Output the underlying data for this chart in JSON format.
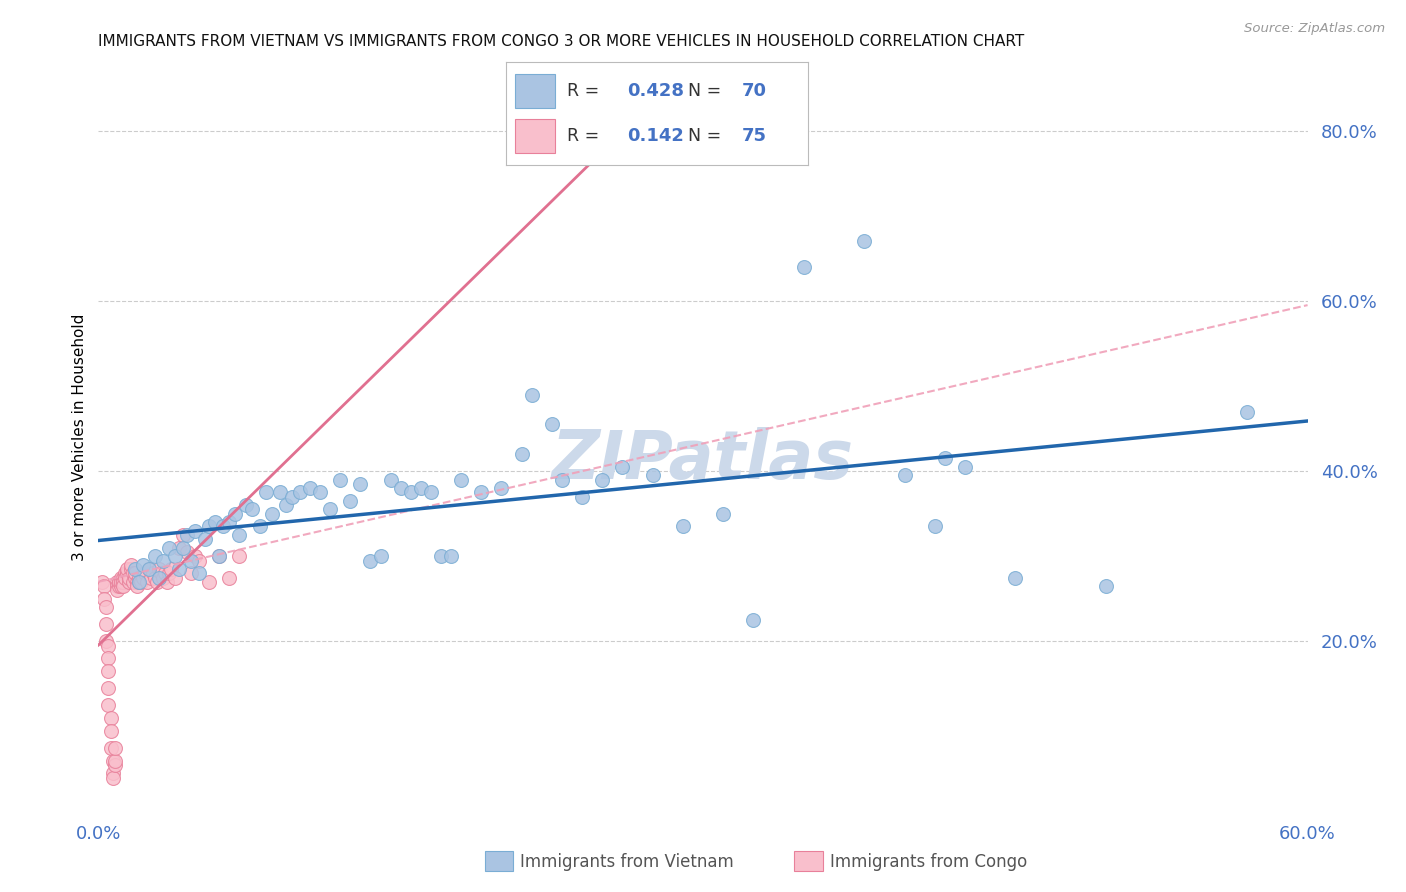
{
  "title": "IMMIGRANTS FROM VIETNAM VS IMMIGRANTS FROM CONGO 3 OR MORE VEHICLES IN HOUSEHOLD CORRELATION CHART",
  "source": "Source: ZipAtlas.com",
  "ylabel": "3 or more Vehicles in Household",
  "xlim": [
    0.0,
    0.6
  ],
  "ylim": [
    0.0,
    0.88
  ],
  "right_yticks": [
    0.2,
    0.4,
    0.6,
    0.8
  ],
  "right_yticklabels": [
    "20.0%",
    "40.0%",
    "60.0%",
    "80.0%"
  ],
  "xtick_vals": [
    0.0,
    0.12,
    0.24,
    0.36,
    0.48,
    0.6
  ],
  "xtick_labels": [
    "0.0%",
    "",
    "",
    "",
    "",
    "60.0%"
  ],
  "vietnam_color": "#aac4e2",
  "vietnam_edge": "#7aadd4",
  "congo_color": "#f9bfcc",
  "congo_edge": "#e8809a",
  "line_vietnam_color": "#2166ac",
  "line_congo_solid_color": "#e07090",
  "line_congo_dashed_color": "#f0a0b8",
  "watermark_color": "#ccd9ea",
  "legend_R_vietnam": "0.428",
  "legend_N_vietnam": "70",
  "legend_R_congo": "0.142",
  "legend_N_congo": "75",
  "legend_val_color": "#4472c4",
  "legend_label_color": "#555555",
  "tick_color": "#4472c4",
  "vietnam_x": [
    0.018,
    0.02,
    0.022,
    0.025,
    0.028,
    0.03,
    0.032,
    0.035,
    0.038,
    0.04,
    0.042,
    0.044,
    0.046,
    0.048,
    0.05,
    0.053,
    0.055,
    0.058,
    0.06,
    0.062,
    0.065,
    0.068,
    0.07,
    0.073,
    0.076,
    0.08,
    0.083,
    0.086,
    0.09,
    0.093,
    0.096,
    0.1,
    0.105,
    0.11,
    0.115,
    0.12,
    0.125,
    0.13,
    0.135,
    0.14,
    0.145,
    0.15,
    0.155,
    0.16,
    0.165,
    0.17,
    0.175,
    0.18,
    0.19,
    0.2,
    0.21,
    0.215,
    0.225,
    0.23,
    0.24,
    0.25,
    0.26,
    0.275,
    0.29,
    0.31,
    0.325,
    0.35,
    0.38,
    0.4,
    0.415,
    0.42,
    0.43,
    0.455,
    0.5,
    0.57
  ],
  "vietnam_y": [
    0.285,
    0.27,
    0.29,
    0.285,
    0.3,
    0.275,
    0.295,
    0.31,
    0.3,
    0.285,
    0.31,
    0.325,
    0.295,
    0.33,
    0.28,
    0.32,
    0.335,
    0.34,
    0.3,
    0.335,
    0.34,
    0.35,
    0.325,
    0.36,
    0.355,
    0.335,
    0.375,
    0.35,
    0.375,
    0.36,
    0.37,
    0.375,
    0.38,
    0.375,
    0.355,
    0.39,
    0.365,
    0.385,
    0.295,
    0.3,
    0.39,
    0.38,
    0.375,
    0.38,
    0.375,
    0.3,
    0.3,
    0.39,
    0.375,
    0.38,
    0.42,
    0.49,
    0.455,
    0.39,
    0.37,
    0.39,
    0.405,
    0.395,
    0.335,
    0.35,
    0.225,
    0.64,
    0.67,
    0.395,
    0.335,
    0.415,
    0.405,
    0.275,
    0.265,
    0.47
  ],
  "congo_x": [
    0.002,
    0.003,
    0.003,
    0.004,
    0.004,
    0.004,
    0.005,
    0.005,
    0.005,
    0.005,
    0.005,
    0.006,
    0.006,
    0.006,
    0.007,
    0.007,
    0.007,
    0.008,
    0.008,
    0.008,
    0.009,
    0.009,
    0.009,
    0.01,
    0.01,
    0.01,
    0.011,
    0.011,
    0.011,
    0.012,
    0.012,
    0.012,
    0.013,
    0.013,
    0.014,
    0.014,
    0.015,
    0.015,
    0.016,
    0.016,
    0.017,
    0.017,
    0.018,
    0.018,
    0.019,
    0.019,
    0.02,
    0.02,
    0.021,
    0.022,
    0.023,
    0.024,
    0.025,
    0.026,
    0.027,
    0.028,
    0.029,
    0.03,
    0.031,
    0.032,
    0.033,
    0.034,
    0.035,
    0.036,
    0.038,
    0.04,
    0.042,
    0.044,
    0.046,
    0.048,
    0.05,
    0.055,
    0.06,
    0.065,
    0.07
  ],
  "congo_y": [
    0.27,
    0.265,
    0.25,
    0.24,
    0.22,
    0.2,
    0.195,
    0.18,
    0.165,
    0.145,
    0.125,
    0.11,
    0.095,
    0.075,
    0.06,
    0.045,
    0.04,
    0.055,
    0.06,
    0.075,
    0.27,
    0.265,
    0.26,
    0.27,
    0.265,
    0.27,
    0.275,
    0.265,
    0.27,
    0.275,
    0.27,
    0.265,
    0.28,
    0.275,
    0.28,
    0.285,
    0.27,
    0.275,
    0.285,
    0.29,
    0.28,
    0.27,
    0.275,
    0.28,
    0.27,
    0.265,
    0.27,
    0.275,
    0.27,
    0.275,
    0.28,
    0.27,
    0.285,
    0.275,
    0.28,
    0.275,
    0.27,
    0.285,
    0.28,
    0.275,
    0.28,
    0.27,
    0.28,
    0.285,
    0.275,
    0.31,
    0.325,
    0.305,
    0.28,
    0.3,
    0.295,
    0.27,
    0.3,
    0.275,
    0.3
  ]
}
